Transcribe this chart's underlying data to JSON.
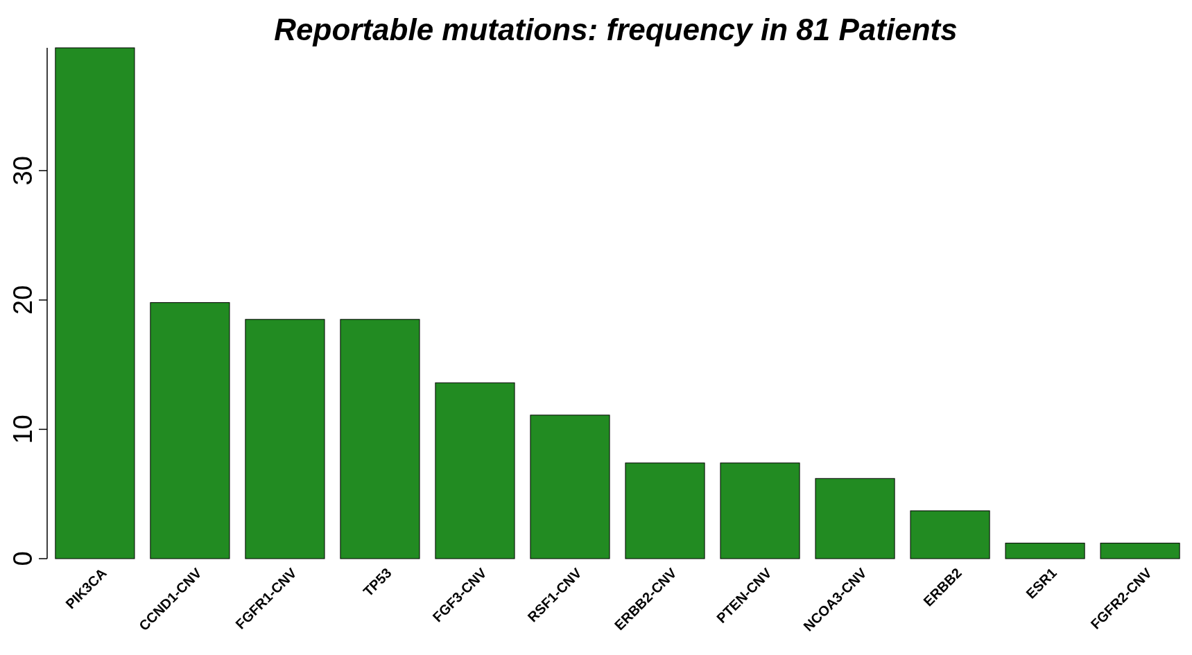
{
  "chart_data": {
    "type": "bar",
    "title": "Reportable mutations: frequency in 81 Patients",
    "categories": [
      "PIK3CA",
      "CCND1-CNV",
      "FGFR1-CNV",
      "TP53",
      "FGF3-CNV",
      "RSF1-CNV",
      "ERBB2-CNV",
      "PTEN-CNV",
      "NCOA3-CNV",
      "ERBB2",
      "ESR1",
      "FGFR2-CNV"
    ],
    "values": [
      39.5,
      19.8,
      18.5,
      18.5,
      13.6,
      11.1,
      7.4,
      7.4,
      6.2,
      3.7,
      1.2,
      1.2
    ],
    "color": "#228b22",
    "ylim": [
      0,
      39.5
    ],
    "yticks": [
      0,
      10,
      20,
      30
    ],
    "grid": false
  }
}
